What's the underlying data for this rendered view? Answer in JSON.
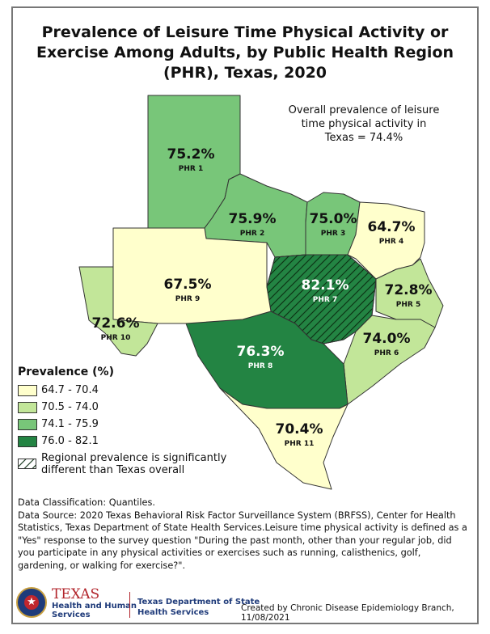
{
  "title": "Prevalence of Leisure Time Physical Activity or Exercise Among Adults, by Public Health Region (PHR), Texas, 2020",
  "title_lines": [
    "Prevalence of Leisure Time Physical Activity or",
    "Exercise Among Adults, by Public Health Region",
    "(PHR), Texas, 2020"
  ],
  "overall_note_lines": [
    "Overall prevalence of leisure",
    "time physical activity in",
    "Texas = 74.4%"
  ],
  "colors": {
    "class1": "#ffffcc",
    "class2": "#c2e699",
    "class3": "#78c679",
    "class4": "#238443"
  },
  "regions": [
    {
      "id": "PHR 1",
      "value": "75.2%",
      "class": 3,
      "hatched": false
    },
    {
      "id": "PHR 2",
      "value": "75.9%",
      "class": 3,
      "hatched": false
    },
    {
      "id": "PHR 3",
      "value": "75.0%",
      "class": 3,
      "hatched": false
    },
    {
      "id": "PHR 4",
      "value": "64.7%",
      "class": 1,
      "hatched": false
    },
    {
      "id": "PHR 5",
      "value": "72.8%",
      "class": 2,
      "hatched": false
    },
    {
      "id": "PHR 6",
      "value": "74.0%",
      "class": 2,
      "hatched": false
    },
    {
      "id": "PHR 7",
      "value": "82.1%",
      "class": 4,
      "hatched": true
    },
    {
      "id": "PHR 8",
      "value": "76.3%",
      "class": 4,
      "hatched": false
    },
    {
      "id": "PHR 9",
      "value": "67.5%",
      "class": 1,
      "hatched": false
    },
    {
      "id": "PHR 10",
      "value": "72.6%",
      "class": 2,
      "hatched": false
    },
    {
      "id": "PHR 11",
      "value": "70.4%",
      "class": 1,
      "hatched": false
    }
  ],
  "legend": {
    "title": "Prevalence (%)",
    "classes": [
      "64.7 - 70.4",
      "70.5 - 74.0",
      "74.1 - 75.9",
      "76.0 - 82.1"
    ],
    "hatch_lines": [
      "Regional prevalence is significantly",
      "different than Texas overall"
    ]
  },
  "notes": {
    "classification": "Data Classification: Quantiles.",
    "source": "Data Source: 2020 Texas Behavioral Risk Factor Surveillance System (BRFSS), Center for Health Statistics, Texas Department of State Health Services.Leisure time physical activity is defined as a \"Yes\" response to the survey question \"During the past month, other than your regular job, did you participate in any physical activities or exercises such as running, calisthenics, golf, gardening, or walking for exercise?\"."
  },
  "footer": {
    "hhs_name": "TEXAS",
    "hhs_sub_lines": [
      "Health and Human",
      "Services"
    ],
    "dshs_lines": [
      "Texas Department of State",
      "Health Services"
    ],
    "created": "Created by Chronic Disease Epidemiology Branch, 11/08/2021"
  }
}
